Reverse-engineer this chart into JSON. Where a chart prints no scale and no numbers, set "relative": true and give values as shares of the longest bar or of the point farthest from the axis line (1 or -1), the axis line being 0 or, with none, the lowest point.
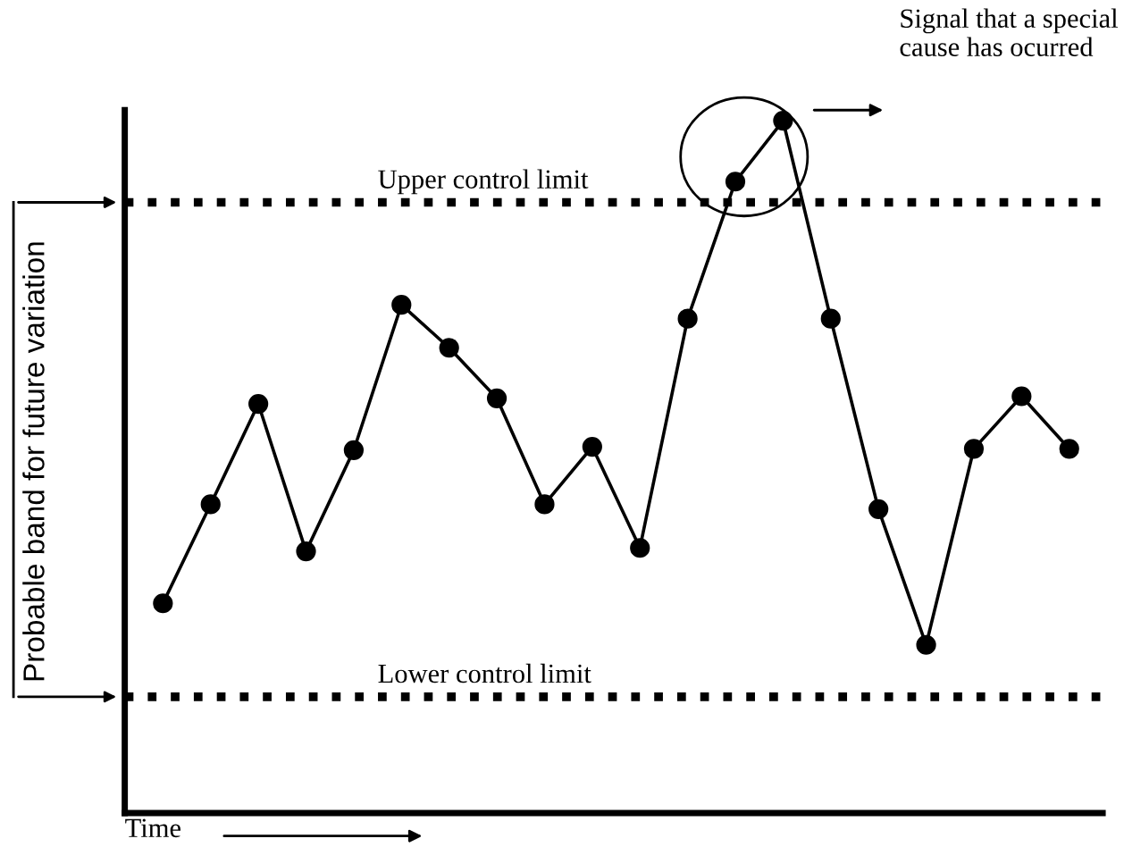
{
  "chart_data": {
    "type": "line",
    "relative": true,
    "categories": [
      null,
      null,
      null,
      null,
      null,
      null,
      null,
      null,
      null,
      null,
      null,
      null,
      null,
      null,
      null,
      null,
      null,
      null,
      null,
      null
    ],
    "series": [
      {
        "color": "#000000",
        "values": [
          0.303,
          0.446,
          0.591,
          0.378,
          0.524,
          0.734,
          0.672,
          0.599,
          0.446,
          0.529,
          0.383,
          0.714,
          0.912,
          1,
          0.714,
          0.439,
          0.243,
          0.526,
          0.602,
          0.526
        ]
      }
    ],
    "marker": "circle",
    "line_style": "solid",
    "legend": false,
    "tick_labels": false,
    "xlabel": "Time",
    "ylabel": "Probable band for future variation",
    "ref_lines": [
      {
        "axis": "y",
        "value": 0.882,
        "label": "Upper control limit",
        "color": "#000000",
        "line_style": "dotted"
      },
      {
        "axis": "y",
        "value": 0.168,
        "label": "Lower control limit",
        "color": "#000000",
        "line_style": "dotted"
      }
    ],
    "annotations": [
      "Signal that a special cause has ocurred"
    ]
  }
}
